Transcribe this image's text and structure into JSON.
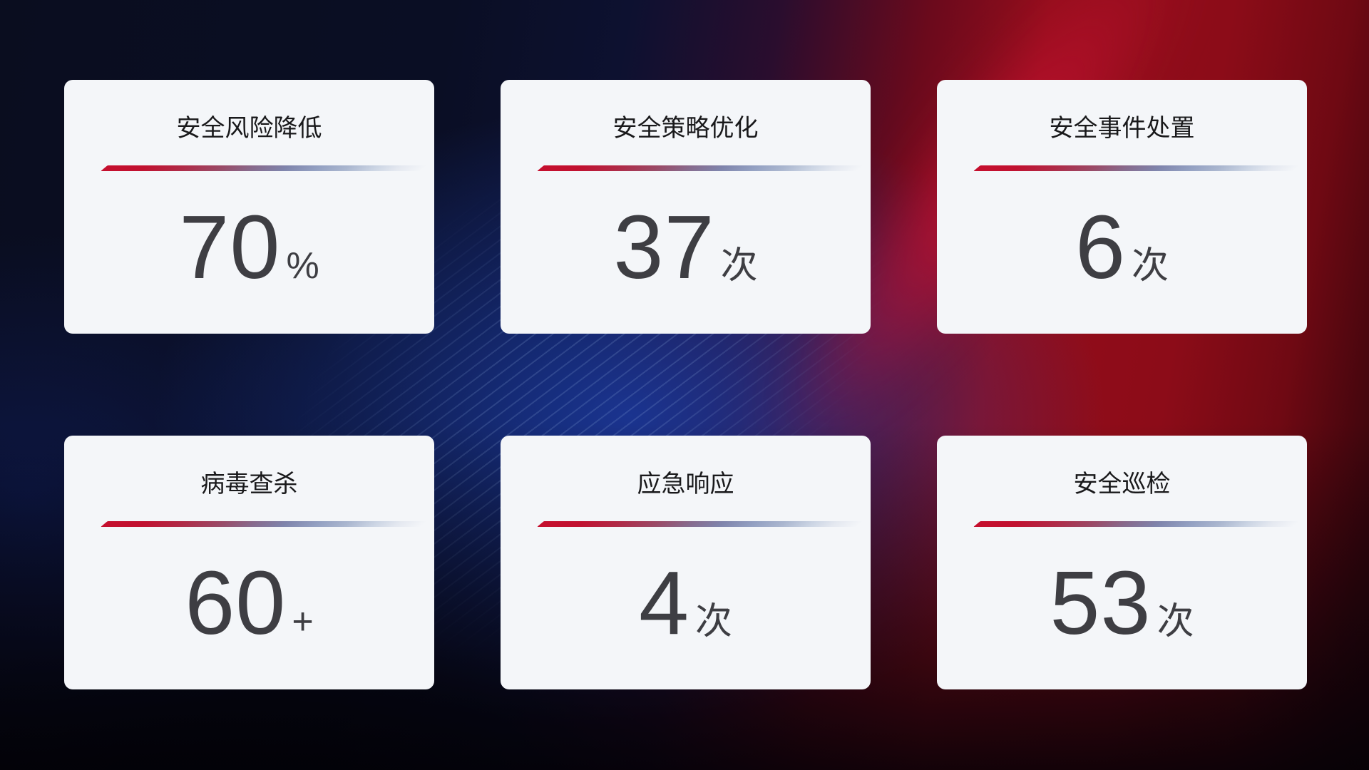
{
  "stats": {
    "cards": [
      {
        "title": "安全风险降低",
        "value": "70",
        "unit": "%"
      },
      {
        "title": "安全策略优化",
        "value": "37",
        "unit": "次"
      },
      {
        "title": "安全事件处置",
        "value": "6",
        "unit": "次"
      },
      {
        "title": "病毒查杀",
        "value": "60",
        "unit": "+"
      },
      {
        "title": "应急响应",
        "value": "4",
        "unit": "次"
      },
      {
        "title": "安全巡检",
        "value": "53",
        "unit": "次"
      }
    ]
  },
  "theme": {
    "card_background": "#f4f6f9",
    "title_color": "#19191b",
    "value_color": "#3e3e43",
    "divider_red": "#c50f2e",
    "divider_blue_gray": "#aab6cf",
    "divider_light": "#e4e8f0",
    "background_navy": "#0a0e24",
    "background_blue_glow": "#1a3aa0",
    "background_red": "#930d1b",
    "background_crimson_band": "#d01238"
  }
}
